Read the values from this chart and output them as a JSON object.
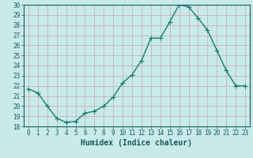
{
  "x": [
    0,
    1,
    2,
    3,
    4,
    5,
    6,
    7,
    8,
    9,
    10,
    11,
    12,
    13,
    14,
    15,
    16,
    17,
    18,
    19,
    20,
    21,
    22,
    23
  ],
  "y": [
    21.7,
    21.3,
    20.0,
    18.8,
    18.4,
    18.5,
    19.3,
    19.5,
    20.0,
    20.9,
    22.3,
    23.1,
    24.5,
    26.7,
    26.7,
    28.3,
    30.0,
    29.8,
    28.7,
    27.5,
    25.5,
    23.5,
    22.0,
    22.0
  ],
  "line_color": "#1a7a6a",
  "marker": "+",
  "marker_size": 4,
  "bg_color": "#c8eaea",
  "grid_color": "#b8d8d8",
  "axis_label_color": "#1a5a5a",
  "tick_label_color": "#1a5a5a",
  "xlabel": "Humidex (Indice chaleur)",
  "ylim": [
    18,
    30
  ],
  "yticks": [
    18,
    19,
    20,
    21,
    22,
    23,
    24,
    25,
    26,
    27,
    28,
    29,
    30
  ],
  "xticks": [
    0,
    1,
    2,
    3,
    4,
    5,
    6,
    7,
    8,
    9,
    10,
    11,
    12,
    13,
    14,
    15,
    16,
    17,
    18,
    19,
    20,
    21,
    22,
    23
  ],
  "xtick_labels": [
    "0",
    "1",
    "2",
    "3",
    "4",
    "5",
    "6",
    "7",
    "8",
    "9",
    "10",
    "11",
    "12",
    "13",
    "14",
    "15",
    "16",
    "17",
    "18",
    "19",
    "20",
    "21",
    "22",
    "23"
  ],
  "line_width": 1.0
}
